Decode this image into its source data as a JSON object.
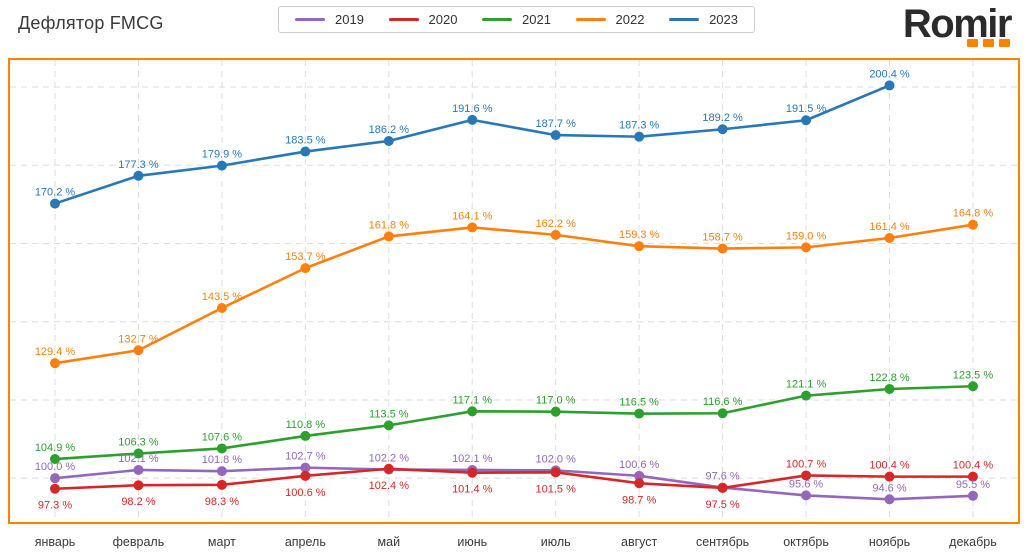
{
  "header": {
    "title": "Дефлятор FMCG"
  },
  "logo": {
    "text": "Romir",
    "accent_color": "#ff8200"
  },
  "plot": {
    "border_color": "#ff8200",
    "grid_color": "#dedede",
    "axis_text_color": "#3a3a3a"
  },
  "chart_data": {
    "type": "line",
    "title": "Дефлятор FMCG",
    "xlabel": "",
    "ylabel": "",
    "value_suffix": " %",
    "ylim": [
      88.8,
      206.9
    ],
    "gridlines_y": [
      100,
      120,
      140,
      160,
      180,
      200
    ],
    "grid": "dashed, x and y, no visible y-axis tick labels",
    "legend_position": "top-center",
    "categories": [
      "январь",
      "февраль",
      "март",
      "апрель",
      "май",
      "июнь",
      "июль",
      "август",
      "сентябрь",
      "октябрь",
      "ноябрь",
      "декабрь"
    ],
    "series": [
      {
        "name": "2019",
        "color": "#9467bd",
        "values": [
          100.0,
          102.1,
          101.8,
          102.7,
          102.2,
          102.1,
          102.0,
          100.6,
          97.6,
          95.6,
          94.6,
          95.5
        ],
        "label_pos": [
          "above",
          "above",
          "above",
          "above",
          "above",
          "above",
          "above",
          "above",
          "above",
          "above",
          "above",
          "above"
        ]
      },
      {
        "name": "2020",
        "color": "#d62728",
        "values": [
          97.3,
          98.2,
          98.3,
          100.6,
          102.4,
          101.4,
          101.5,
          98.7,
          97.5,
          100.7,
          100.4,
          100.4
        ],
        "label_pos": [
          "below",
          "below",
          "below",
          "below",
          "below",
          "below",
          "below",
          "below",
          "below",
          "above",
          "above",
          "above"
        ]
      },
      {
        "name": "2021",
        "color": "#2ca02c",
        "values": [
          104.9,
          106.3,
          107.6,
          110.8,
          113.5,
          117.1,
          117.0,
          116.5,
          116.6,
          121.1,
          122.8,
          123.5
        ],
        "label_pos": [
          "above",
          "above",
          "above",
          "above",
          "above",
          "above",
          "above",
          "above",
          "above",
          "above",
          "above",
          "above"
        ]
      },
      {
        "name": "2022",
        "color": "#ff7f0e",
        "values": [
          129.4,
          132.7,
          143.5,
          153.7,
          161.8,
          164.1,
          162.2,
          159.3,
          158.7,
          159.0,
          161.4,
          164.8
        ],
        "label_pos": [
          "above",
          "above",
          "above",
          "above",
          "above",
          "above",
          "above",
          "above",
          "above",
          "above",
          "above",
          "above"
        ]
      },
      {
        "name": "2023",
        "color": "#2878b8",
        "values": [
          170.2,
          177.3,
          179.9,
          183.5,
          186.2,
          191.6,
          187.7,
          187.3,
          189.2,
          191.5,
          200.4
        ],
        "label_pos": [
          "above",
          "above",
          "above",
          "above",
          "above",
          "above",
          "above",
          "above",
          "above",
          "above",
          "above"
        ]
      }
    ]
  }
}
